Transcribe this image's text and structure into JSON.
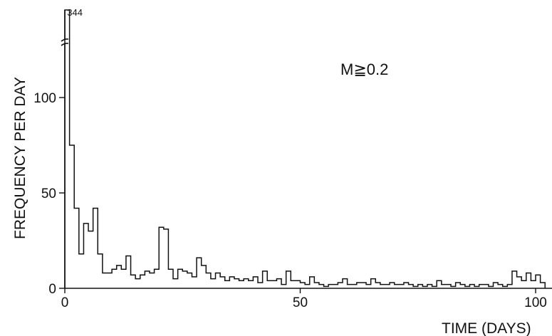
{
  "chart_data": {
    "type": "bar",
    "title": "",
    "xlabel": "TIME (DAYS)",
    "ylabel": "FREQUENCY PER DAY",
    "annotation": "M≧0.2",
    "peak_label": "344",
    "xlim": [
      0,
      102
    ],
    "ylim": [
      0,
      344
    ],
    "grid": false,
    "axis_break": true,
    "x_ticks": [
      0,
      50,
      100
    ],
    "y_ticks": [
      0,
      50,
      100
    ],
    "x_tick_labels": [
      "0",
      "50",
      "100"
    ],
    "y_tick_labels": [
      "0",
      "50",
      "100"
    ],
    "bin_width_days": 1,
    "values": [
      344,
      75,
      42,
      18,
      34,
      30,
      42,
      18,
      8,
      8,
      10,
      12,
      10,
      17,
      7,
      5,
      7,
      9,
      8,
      10,
      32,
      31,
      10,
      5,
      10,
      9,
      8,
      6,
      16,
      12,
      8,
      5,
      8,
      6,
      4,
      6,
      5,
      4,
      5,
      4,
      6,
      3,
      9,
      4,
      4,
      5,
      2,
      9,
      4,
      4,
      3,
      2,
      6,
      3,
      2,
      1,
      2,
      2,
      3,
      5,
      2,
      2,
      3,
      3,
      2,
      5,
      3,
      2,
      2,
      3,
      2,
      2,
      3,
      2,
      1,
      2,
      1,
      2,
      1,
      4,
      2,
      2,
      1,
      3,
      2,
      1,
      2,
      1,
      2,
      2,
      1,
      3,
      2,
      1,
      2,
      9,
      6,
      4,
      8,
      4,
      7,
      3
    ]
  }
}
